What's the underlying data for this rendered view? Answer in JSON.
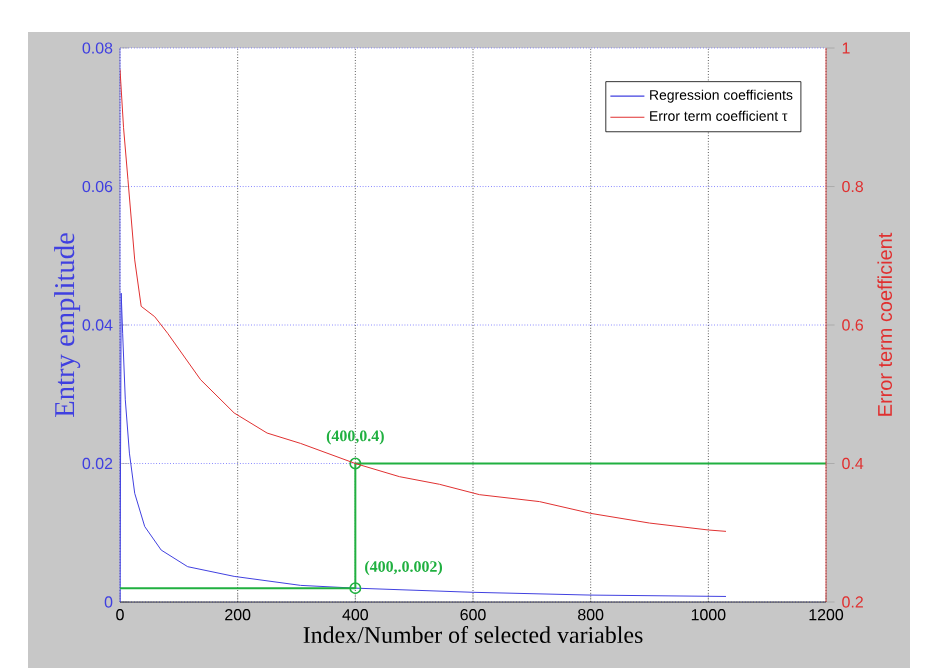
{
  "chart_data": {
    "type": "line",
    "xlabel": "Index/Number of selected variables",
    "ylabel": "Entry emplitude",
    "y2label": "Error term coefficient",
    "xlim": [
      0,
      1200
    ],
    "xticks": [
      0,
      200,
      400,
      600,
      800,
      1000,
      1200
    ],
    "ylim": [
      0,
      0.08
    ],
    "yticks": [
      0,
      0.02,
      0.04,
      0.06,
      0.08
    ],
    "y2lim": [
      0.2,
      1
    ],
    "y2ticks": [
      0.2,
      0.4,
      0.6,
      0.8,
      1
    ],
    "grid": true,
    "legend": "top right",
    "series": [
      {
        "name": "Regression coefficients",
        "color": "#4040e0",
        "x": [
          0,
          2,
          4.5,
          9,
          16,
          25,
          42,
          70,
          115,
          194,
          307,
          400,
          600,
          800,
          1030
        ],
        "values": [
          0.0,
          0.0446,
          0.0388,
          0.0292,
          0.0215,
          0.0157,
          0.0109,
          0.0075,
          0.0051,
          0.0037,
          0.0024,
          0.002,
          0.0014,
          0.001,
          0.0008
        ]
      },
      {
        "name": "Error term coefficient τ",
        "color": "#e03030",
        "axis": "y2",
        "x": [
          0,
          6,
          13.5,
          25,
          36,
          59,
          81,
          137,
          194,
          250,
          307,
          400,
          475,
          543,
          611,
          713,
          800,
          900,
          1000,
          1030
        ],
        "values": [
          0.969,
          0.885,
          0.81,
          0.694,
          0.627,
          0.612,
          0.588,
          0.521,
          0.473,
          0.444,
          0.429,
          0.4,
          0.381,
          0.37,
          0.355,
          0.345,
          0.328,
          0.314,
          0.304,
          0.302
        ]
      },
      {
        "color": "#20b040",
        "x": [
          0,
          400,
          400,
          1200
        ],
        "values": [
          0.002,
          0.002,
          0.02,
          0.02
        ]
      }
    ],
    "annotations": [
      {
        "text": "(400,0.4)",
        "x": 400,
        "y": 0.02
      },
      {
        "text": "(400,.0.002)",
        "x": 400,
        "y": 0.002
      }
    ]
  }
}
